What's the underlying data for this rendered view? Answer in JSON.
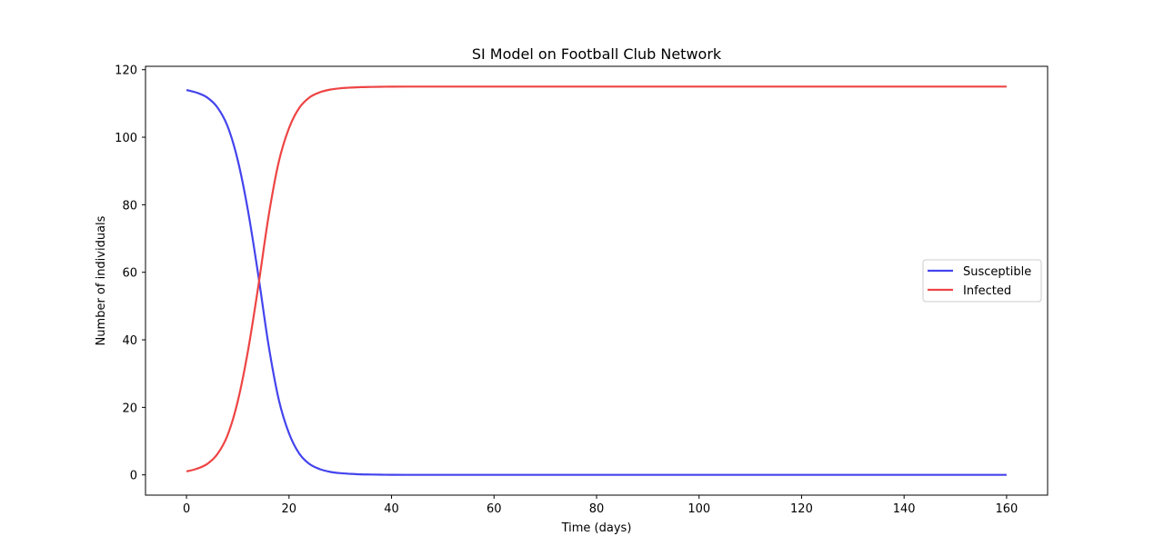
{
  "chart_data": {
    "type": "line",
    "title": "SI Model on Football Club Network",
    "xlabel": "Time (days)",
    "ylabel": "Number of individuals",
    "xlim": [
      -8,
      168
    ],
    "ylim": [
      -6,
      121
    ],
    "xticks": [
      0,
      20,
      40,
      60,
      80,
      100,
      120,
      140,
      160
    ],
    "yticks": [
      0,
      20,
      40,
      60,
      80,
      100,
      120
    ],
    "grid": false,
    "legend_position": "center-right",
    "x": [
      0,
      2,
      4,
      6,
      8,
      10,
      12,
      14,
      16,
      18,
      20,
      22,
      24,
      26,
      28,
      30,
      32,
      34,
      36,
      38,
      40,
      45,
      50,
      60,
      80,
      100,
      120,
      140,
      160
    ],
    "series": [
      {
        "name": "Susceptible",
        "color": "#4444ee",
        "values": [
          114,
          113.2,
          111.8,
          108.9,
          103.3,
          93.2,
          78.2,
          59.2,
          38.5,
          22.3,
          12.3,
          6.3,
          3.2,
          1.7,
          0.9,
          0.5,
          0.3,
          0.15,
          0.1,
          0.05,
          0.03,
          0,
          0,
          0,
          0,
          0,
          0,
          0,
          0
        ]
      },
      {
        "name": "Infected",
        "color": "#ee4444",
        "values": [
          1,
          1.8,
          3.2,
          6.1,
          11.7,
          21.8,
          36.8,
          55.8,
          76.5,
          92.7,
          102.7,
          108.7,
          111.8,
          113.3,
          114.1,
          114.5,
          114.7,
          114.85,
          114.9,
          114.95,
          114.97,
          115,
          115,
          115,
          115,
          115,
          115,
          115,
          115
        ]
      }
    ]
  }
}
